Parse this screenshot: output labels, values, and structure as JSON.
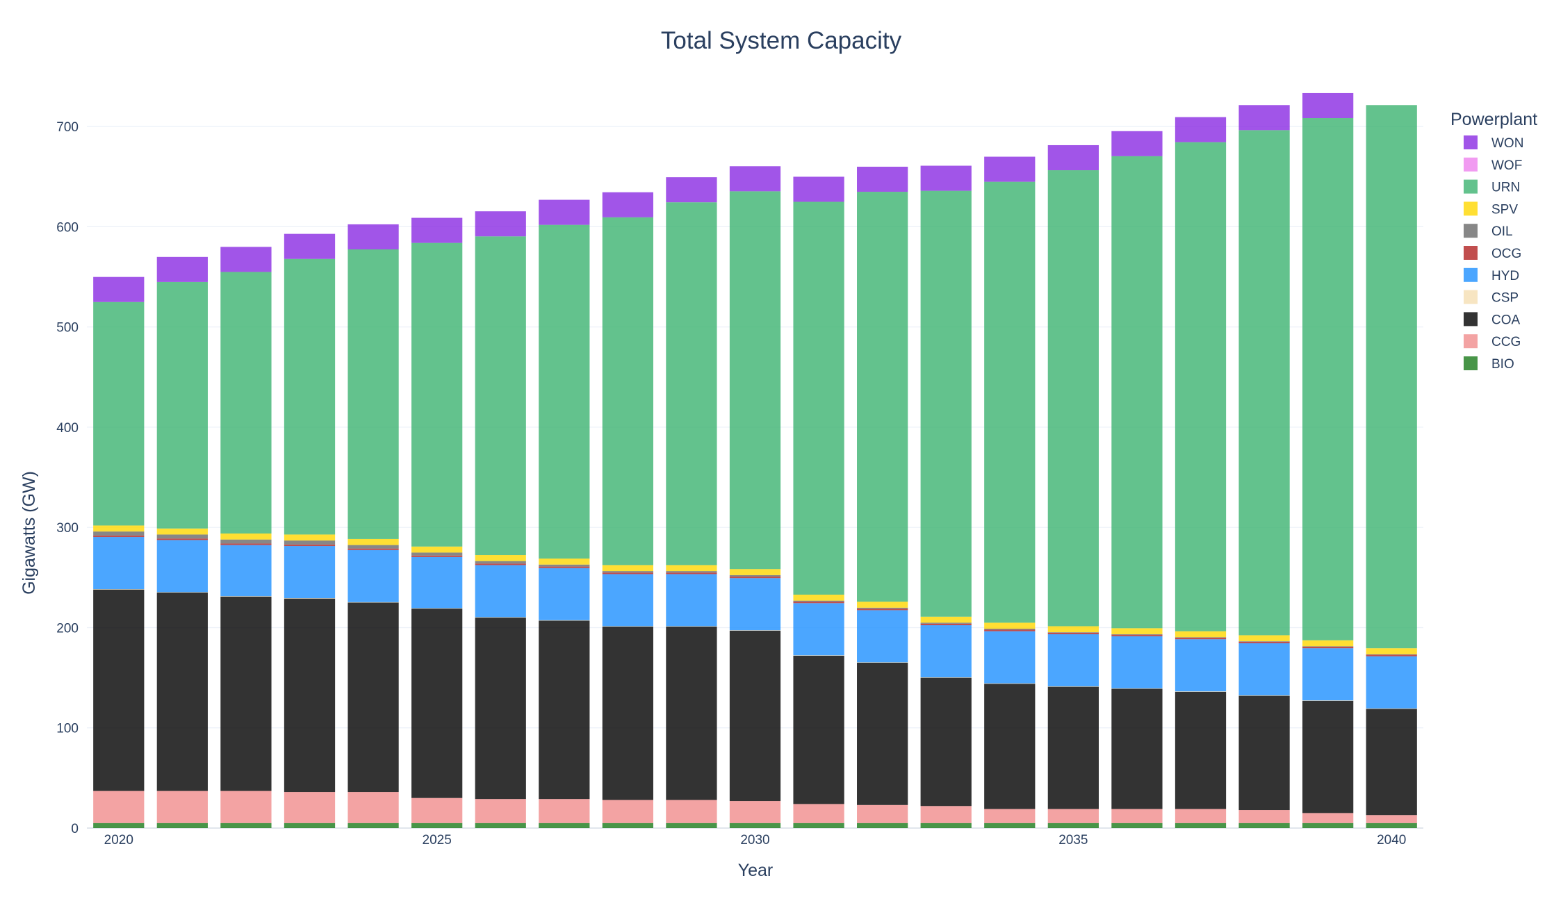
{
  "chart_data": {
    "type": "stacked-bar",
    "title": "Total System Capacity",
    "xlabel": "Year",
    "ylabel": "Gigawatts (GW)",
    "ylim": [
      0,
      750
    ],
    "yticks": [
      0,
      100,
      200,
      300,
      400,
      500,
      600,
      700
    ],
    "xtick_labels": [
      "2020",
      "2025",
      "2030",
      "2035",
      "2040"
    ],
    "legend_title": "Powerplant",
    "grid": true,
    "categories": [
      2020,
      2021,
      2022,
      2023,
      2024,
      2025,
      2026,
      2027,
      2028,
      2029,
      2030,
      2031,
      2032,
      2033,
      2034,
      2035,
      2036,
      2037,
      2038,
      2039,
      2040
    ],
    "series": [
      {
        "name": "BIO",
        "color": "#1a7a1a",
        "values": [
          5,
          5,
          5,
          5,
          5,
          5,
          5,
          5,
          5,
          5,
          5,
          5,
          5,
          5,
          5,
          5,
          5,
          5,
          5,
          5,
          5
        ]
      },
      {
        "name": "CCG",
        "color": "#f08c8c",
        "values": [
          32,
          32,
          32,
          31,
          31,
          25,
          24,
          24,
          23,
          23,
          22,
          19,
          18,
          17,
          14,
          14,
          14,
          14,
          13,
          10,
          8
        ]
      },
      {
        "name": "COA",
        "color": "#000000",
        "values": [
          201,
          198,
          194,
          193,
          189,
          189,
          181,
          178,
          173,
          173,
          170,
          148,
          142,
          128,
          125,
          122,
          120,
          117,
          114,
          112,
          106
        ]
      },
      {
        "name": "CSP",
        "color": "#f5deb3",
        "values": [
          0.4,
          0.4,
          0.4,
          0.4,
          0.4,
          0.4,
          0.4,
          0.4,
          0.4,
          0.4,
          0.4,
          0.4,
          0.4,
          0.4,
          0.4,
          0.4,
          0.4,
          0.4,
          0.4,
          0.4,
          0.4
        ]
      },
      {
        "name": "HYD",
        "color": "#1e90ff",
        "values": [
          52,
          52,
          51,
          52,
          52,
          51,
          52,
          52,
          52,
          52,
          52,
          52,
          52,
          52,
          52,
          52,
          52,
          52,
          52,
          52,
          52
        ]
      },
      {
        "name": "OCG",
        "color": "#b22222",
        "values": [
          1.5,
          1.5,
          1.5,
          1.5,
          1.5,
          1.5,
          1.5,
          1.5,
          1.5,
          1.5,
          1.5,
          1.5,
          1.5,
          1.5,
          1.5,
          1.5,
          1.5,
          1.5,
          1.5,
          1.5,
          1.5
        ]
      },
      {
        "name": "OIL",
        "color": "#696969",
        "values": [
          4,
          4,
          4,
          4,
          3.5,
          3,
          2.5,
          2,
          1.5,
          1.5,
          1.5,
          1,
          1,
          1,
          1,
          0.5,
          0.5,
          0.5,
          0.5,
          0.5,
          0.5
        ]
      },
      {
        "name": "SPV",
        "color": "#ffd700",
        "values": [
          6,
          6,
          6,
          6,
          6,
          6,
          6,
          6,
          6,
          6,
          6,
          6,
          6,
          6,
          6,
          6,
          6,
          6,
          6,
          6,
          6
        ]
      },
      {
        "name": "URN",
        "color": "#3cb371",
        "values": [
          223,
          246,
          261,
          275,
          289,
          303,
          318,
          333,
          347,
          362,
          377,
          392,
          409,
          425,
          440,
          455,
          471,
          488,
          504,
          521,
          542
        ]
      },
      {
        "name": "WOF",
        "color": "#ee82ee",
        "values": [
          0,
          0,
          0,
          0,
          0,
          0,
          0,
          0,
          0,
          0,
          0,
          0,
          0,
          0,
          0,
          0,
          0,
          0,
          0,
          0,
          0
        ]
      },
      {
        "name": "WON",
        "color": "#8a2be2",
        "values": [
          25,
          25,
          25,
          25,
          25,
          25,
          25,
          25,
          25,
          25,
          25,
          25,
          25,
          25,
          25,
          25,
          25,
          25,
          25,
          25,
          0
        ]
      }
    ]
  }
}
